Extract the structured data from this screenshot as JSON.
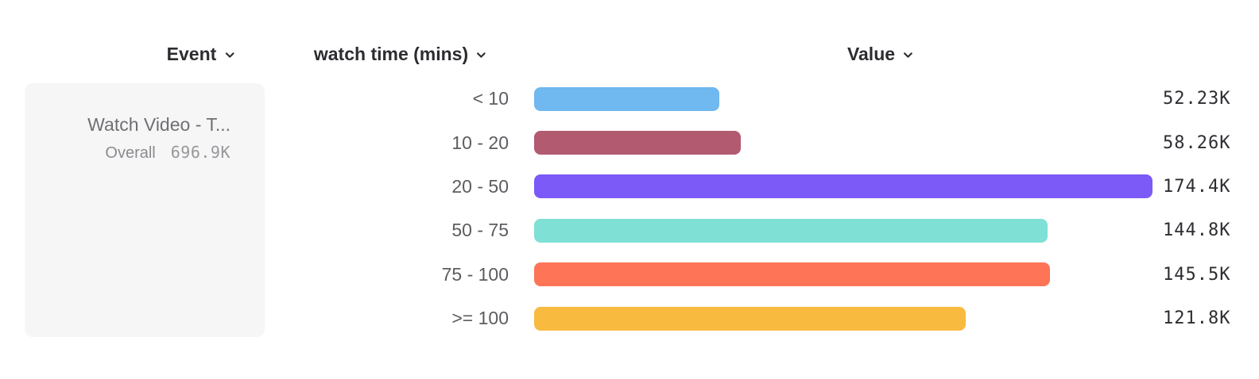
{
  "header": {
    "event_label": "Event",
    "breakdown_label": "watch time (mins)",
    "value_label": "Value"
  },
  "event_card": {
    "name": "Watch Video - T...",
    "overall_label": "Overall",
    "overall_value": "696.9K"
  },
  "chart_data": {
    "type": "bar",
    "orientation": "horizontal",
    "title": "",
    "xlabel": "Value",
    "ylabel": "watch time (mins)",
    "series_name": "Watch Video - T...",
    "overall_total": "696.9K",
    "categories": [
      "< 10",
      "10 - 20",
      "20 - 50",
      "50 - 75",
      "75 - 100",
      ">= 100"
    ],
    "values": [
      52230,
      58260,
      174400,
      144800,
      145500,
      121800
    ],
    "value_labels": [
      "52.23K",
      "58.26K",
      "174.4K",
      "144.8K",
      "145.5K",
      "121.8K"
    ],
    "colors": [
      "#6FB8F0",
      "#B15A70",
      "#7B5AF7",
      "#7FE0D5",
      "#FD7457",
      "#F8BB40"
    ],
    "legend_position": "left",
    "grid": false
  }
}
